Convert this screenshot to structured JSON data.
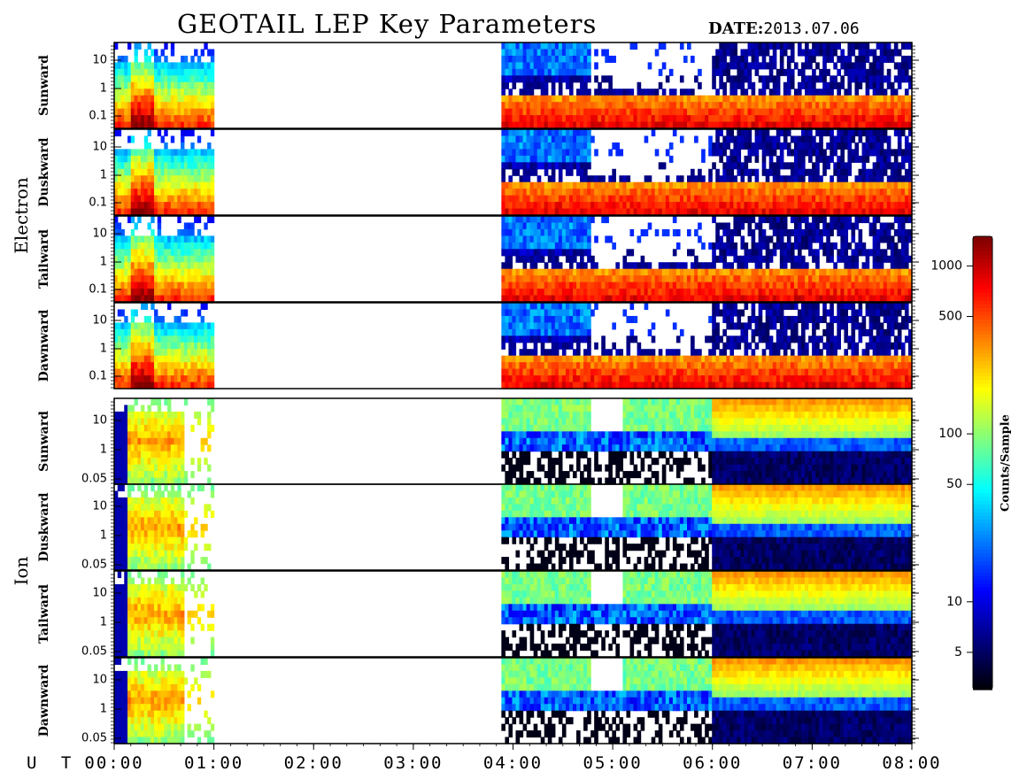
{
  "header": {
    "title": "GEOTAIL LEP Key Parameters",
    "date_label": "DATE:",
    "date_value": "2013.07.06"
  },
  "colors": {
    "palette": [
      "#000000",
      "#00007f",
      "#0000ff",
      "#007fff",
      "#00ffff",
      "#7fff7f",
      "#ffff00",
      "#ff7f00",
      "#ff0000",
      "#7f0000"
    ]
  },
  "chart_data": {
    "type": "heatmap",
    "title": "GEOTAIL LEP Key Parameters",
    "xlabel": "U T",
    "x_ticks": [
      "00:00",
      "01:00",
      "02:00",
      "03:00",
      "04:00",
      "05:00",
      "06:00",
      "07:00",
      "08:00"
    ],
    "xlim": [
      "00:00",
      "08:00"
    ],
    "groups": [
      {
        "name": "Electron",
        "y_ticks": [
          "10",
          "1",
          "0.1"
        ],
        "panels": [
          "Sunward",
          "Duskward",
          "Tailward",
          "Dawnward"
        ]
      },
      {
        "name": "Ion",
        "y_ticks": [
          "10",
          "1",
          "0.05"
        ],
        "panels": [
          "Sunward",
          "Duskward",
          "Tailward",
          "Dawnward"
        ]
      }
    ],
    "colorbar": {
      "label": "Counts/Sample",
      "scale": "log",
      "range": [
        3,
        1500
      ],
      "ticks": [
        "1000",
        "500",
        "100",
        "50",
        "10",
        "5"
      ]
    },
    "data_intervals_ut": [
      [
        "00:00",
        "01:00"
      ],
      [
        "03:53",
        "08:00"
      ]
    ]
  }
}
